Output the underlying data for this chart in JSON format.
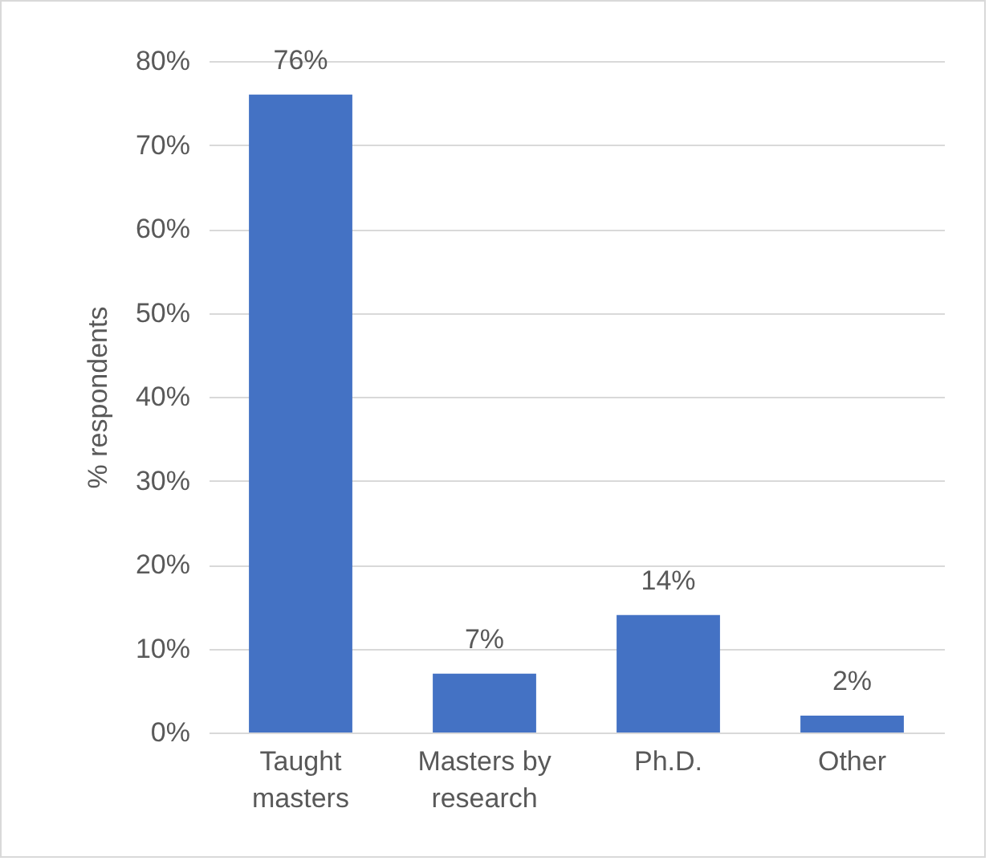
{
  "chart_data": {
    "type": "bar",
    "ylabel": "% respondents",
    "categories": [
      "Taught masters",
      "Masters by research",
      "Ph.D.",
      "Other"
    ],
    "values": [
      76,
      7,
      14,
      2
    ],
    "value_labels": [
      "76%",
      "7%",
      "14%",
      "2%"
    ],
    "color": "#4472c4",
    "ylim": [
      0,
      80
    ],
    "yticks": [
      {
        "value": 0,
        "label": "0%"
      },
      {
        "value": 10,
        "label": "10%"
      },
      {
        "value": 20,
        "label": "20%"
      },
      {
        "value": 30,
        "label": "30%"
      },
      {
        "value": 40,
        "label": "40%"
      },
      {
        "value": 50,
        "label": "50%"
      },
      {
        "value": 60,
        "label": "60%"
      },
      {
        "value": 70,
        "label": "70%"
      },
      {
        "value": 80,
        "label": "80%"
      }
    ],
    "grid": "y"
  }
}
